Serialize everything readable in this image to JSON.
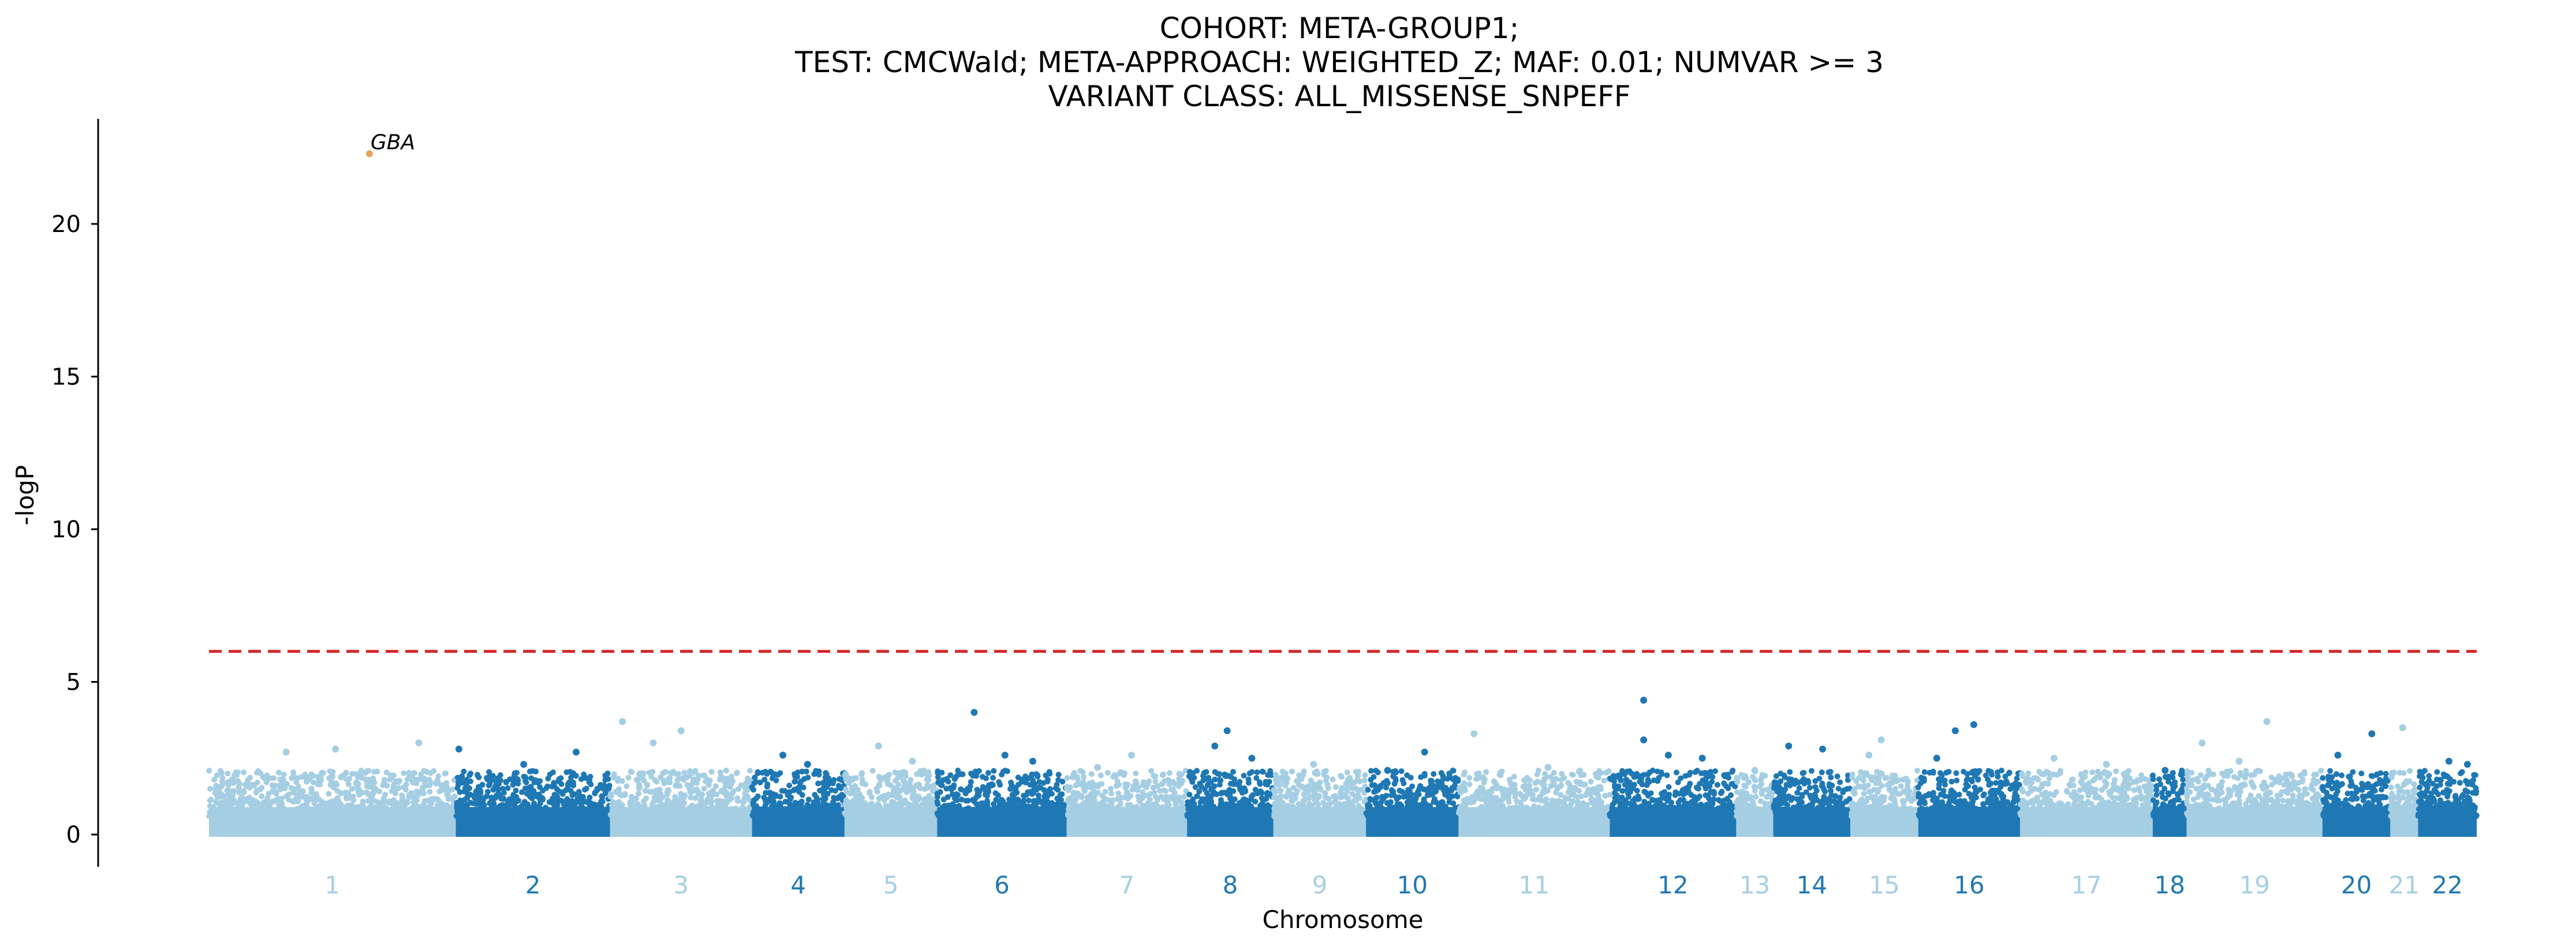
{
  "chart_data": {
    "type": "scatter",
    "title_lines": [
      "COHORT: META-GROUP1;",
      "TEST: CMCWald; META-APPROACH: WEIGHTED_Z; MAF: 0.01; NUMVAR >= 3",
      "VARIANT CLASS: ALL_MISSENSE_SNPEFF"
    ],
    "xlabel": "Chromosome",
    "ylabel": "-logP",
    "ylim": [
      -1,
      23.5
    ],
    "yticks": [
      0,
      5,
      10,
      15,
      20
    ],
    "threshold": 6,
    "threshold_color": "#d62728",
    "colors": {
      "light": "#a6cee3",
      "dark": "#1f78b4",
      "highlight": "#e6a25c"
    },
    "chromosomes": [
      {
        "label": "1",
        "start": 0.0,
        "end": 8.0,
        "shade": "light"
      },
      {
        "label": "2",
        "start": 8.0,
        "end": 13.0,
        "shade": "dark"
      },
      {
        "label": "3",
        "start": 13.0,
        "end": 17.6,
        "shade": "light"
      },
      {
        "label": "4",
        "start": 17.6,
        "end": 20.6,
        "shade": "dark"
      },
      {
        "label": "5",
        "start": 20.6,
        "end": 23.6,
        "shade": "light"
      },
      {
        "label": "6",
        "start": 23.6,
        "end": 27.8,
        "shade": "dark"
      },
      {
        "label": "7",
        "start": 27.8,
        "end": 31.7,
        "shade": "light"
      },
      {
        "label": "8",
        "start": 31.7,
        "end": 34.5,
        "shade": "dark"
      },
      {
        "label": "9",
        "start": 34.5,
        "end": 37.5,
        "shade": "light"
      },
      {
        "label": "10",
        "start": 37.5,
        "end": 40.5,
        "shade": "dark"
      },
      {
        "label": "11",
        "start": 40.5,
        "end": 45.4,
        "shade": "light"
      },
      {
        "label": "12",
        "start": 45.4,
        "end": 49.5,
        "shade": "dark"
      },
      {
        "label": "13",
        "start": 49.5,
        "end": 50.7,
        "shade": "light"
      },
      {
        "label": "14",
        "start": 50.7,
        "end": 53.2,
        "shade": "dark"
      },
      {
        "label": "15",
        "start": 53.2,
        "end": 55.4,
        "shade": "light"
      },
      {
        "label": "16",
        "start": 55.4,
        "end": 58.7,
        "shade": "dark"
      },
      {
        "label": "17",
        "start": 58.7,
        "end": 63.0,
        "shade": "light"
      },
      {
        "label": "18",
        "start": 63.0,
        "end": 64.1,
        "shade": "dark"
      },
      {
        "label": "19",
        "start": 64.1,
        "end": 68.5,
        "shade": "light"
      },
      {
        "label": "20",
        "start": 68.5,
        "end": 70.7,
        "shade": "dark"
      },
      {
        "label": "21",
        "start": 70.7,
        "end": 71.6,
        "shade": "light"
      },
      {
        "label": "22",
        "start": 71.6,
        "end": 73.5,
        "shade": "dark"
      }
    ],
    "points": [
      {
        "chrom": "1",
        "x": 5.2,
        "y": 22.3,
        "label": "GBA",
        "shade": "highlight"
      },
      {
        "chrom": "1",
        "x": 6.8,
        "y": 3.0
      },
      {
        "chrom": "1",
        "x": 4.1,
        "y": 2.8
      },
      {
        "chrom": "1",
        "x": 2.5,
        "y": 2.7
      },
      {
        "chrom": "2",
        "x": 8.1,
        "y": 2.8
      },
      {
        "chrom": "2",
        "x": 11.9,
        "y": 2.7
      },
      {
        "chrom": "2",
        "x": 10.2,
        "y": 2.3
      },
      {
        "chrom": "3",
        "x": 13.4,
        "y": 3.7
      },
      {
        "chrom": "3",
        "x": 15.3,
        "y": 3.4
      },
      {
        "chrom": "3",
        "x": 14.4,
        "y": 3.0
      },
      {
        "chrom": "4",
        "x": 18.6,
        "y": 2.6
      },
      {
        "chrom": "4",
        "x": 19.4,
        "y": 2.3
      },
      {
        "chrom": "5",
        "x": 21.7,
        "y": 2.9
      },
      {
        "chrom": "5",
        "x": 22.8,
        "y": 2.4
      },
      {
        "chrom": "6",
        "x": 24.8,
        "y": 4.0
      },
      {
        "chrom": "6",
        "x": 25.8,
        "y": 2.6
      },
      {
        "chrom": "6",
        "x": 26.7,
        "y": 2.4
      },
      {
        "chrom": "7",
        "x": 29.9,
        "y": 2.6
      },
      {
        "chrom": "7",
        "x": 28.8,
        "y": 2.2
      },
      {
        "chrom": "8",
        "x": 33.0,
        "y": 3.4
      },
      {
        "chrom": "8",
        "x": 32.6,
        "y": 2.9
      },
      {
        "chrom": "8",
        "x": 33.8,
        "y": 2.5
      },
      {
        "chrom": "9",
        "x": 35.8,
        "y": 2.3
      },
      {
        "chrom": "10",
        "x": 39.4,
        "y": 2.7
      },
      {
        "chrom": "10",
        "x": 38.2,
        "y": 2.1
      },
      {
        "chrom": "11",
        "x": 41.0,
        "y": 3.3
      },
      {
        "chrom": "11",
        "x": 43.4,
        "y": 2.2
      },
      {
        "chrom": "12",
        "x": 46.5,
        "y": 4.4
      },
      {
        "chrom": "12",
        "x": 46.5,
        "y": 3.1
      },
      {
        "chrom": "12",
        "x": 47.3,
        "y": 2.6
      },
      {
        "chrom": "12",
        "x": 48.4,
        "y": 2.5
      },
      {
        "chrom": "13",
        "x": 50.1,
        "y": 2.1
      },
      {
        "chrom": "14",
        "x": 51.2,
        "y": 2.9
      },
      {
        "chrom": "14",
        "x": 52.3,
        "y": 2.8
      },
      {
        "chrom": "15",
        "x": 54.2,
        "y": 3.1
      },
      {
        "chrom": "15",
        "x": 53.8,
        "y": 2.6
      },
      {
        "chrom": "16",
        "x": 57.2,
        "y": 3.6
      },
      {
        "chrom": "16",
        "x": 56.6,
        "y": 3.4
      },
      {
        "chrom": "16",
        "x": 56.0,
        "y": 2.5
      },
      {
        "chrom": "17",
        "x": 59.8,
        "y": 2.5
      },
      {
        "chrom": "17",
        "x": 61.5,
        "y": 2.3
      },
      {
        "chrom": "18",
        "x": 63.4,
        "y": 2.1
      },
      {
        "chrom": "19",
        "x": 64.6,
        "y": 3.0
      },
      {
        "chrom": "19",
        "x": 66.7,
        "y": 3.7
      },
      {
        "chrom": "19",
        "x": 65.8,
        "y": 2.4
      },
      {
        "chrom": "20",
        "x": 70.1,
        "y": 3.3
      },
      {
        "chrom": "20",
        "x": 69.0,
        "y": 2.6
      },
      {
        "chrom": "21",
        "x": 71.1,
        "y": 3.5
      },
      {
        "chrom": "22",
        "x": 72.6,
        "y": 2.4
      },
      {
        "chrom": "22",
        "x": 73.2,
        "y": 2.3
      }
    ]
  }
}
